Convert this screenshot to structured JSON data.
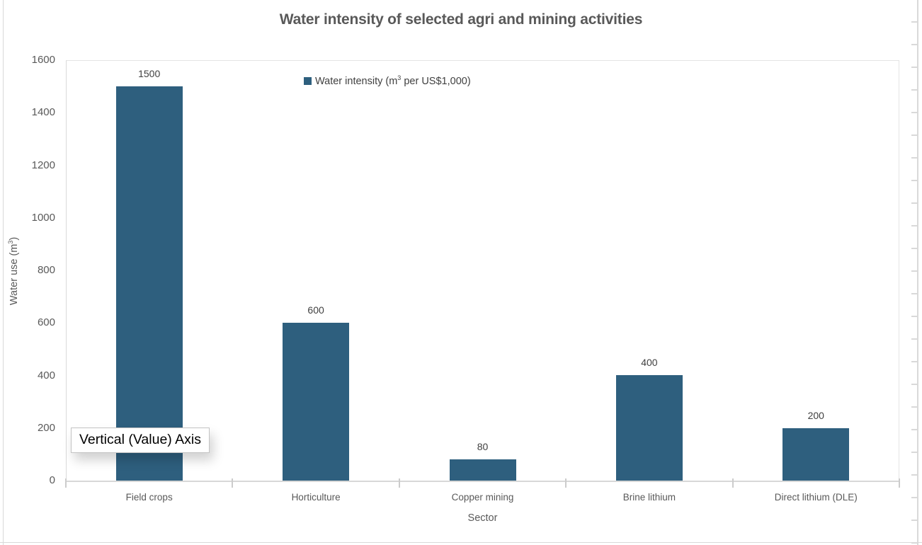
{
  "chart_data": {
    "type": "bar",
    "title": "Water intensity of selected agri and mining activities",
    "categories": [
      "Field crops",
      "Horticulture",
      "Copper mining",
      "Brine lithium",
      "Direct lithium (DLE)"
    ],
    "values": [
      1500,
      600,
      80,
      400,
      200
    ],
    "data_labels": [
      "1500",
      "600",
      "80",
      "400",
      "200"
    ],
    "series": [
      {
        "name": "Water intensity (m³ per US$1,000)",
        "values": [
          1500,
          600,
          80,
          400,
          200
        ]
      }
    ],
    "xlabel": "Sector",
    "ylabel": "Water use (m³)",
    "ylim": [
      0,
      1600
    ],
    "yticks": [
      0,
      200,
      400,
      600,
      800,
      1000,
      1200,
      1400,
      1600
    ],
    "grid": false,
    "legend_position": "top-center",
    "bar_color": "#2E5F7E"
  },
  "title": {
    "text": "Water intensity of selected agri and mining activities"
  },
  "legend": {
    "pre": "Water intensity (m",
    "sup": "3",
    "post": " per US$1,000)",
    "marker_color": "#2E5F7E"
  },
  "y_axis": {
    "title_pre": "Water use (m",
    "title_sup": "3",
    "title_post": ")",
    "tick_labels": [
      "0",
      "200",
      "400",
      "600",
      "800",
      "1000",
      "1200",
      "1400",
      "1600"
    ]
  },
  "x_axis": {
    "title": "Sector",
    "labels": [
      "Field crops",
      "Horticulture",
      "Copper mining",
      "Brine lithium",
      "Direct lithium (DLE)"
    ]
  },
  "tooltip": {
    "text": "Vertical (Value) Axis"
  },
  "colors": {
    "bar": "#2E5F7E",
    "title_text": "#595959",
    "axis_text": "#595959",
    "data_label_text": "#404040",
    "axis_line": "#D8D8D8",
    "plot_border": "#E4E4E4",
    "worksheet_line": "#D9D9D9",
    "tooltip_border": "#C3C3C3"
  }
}
